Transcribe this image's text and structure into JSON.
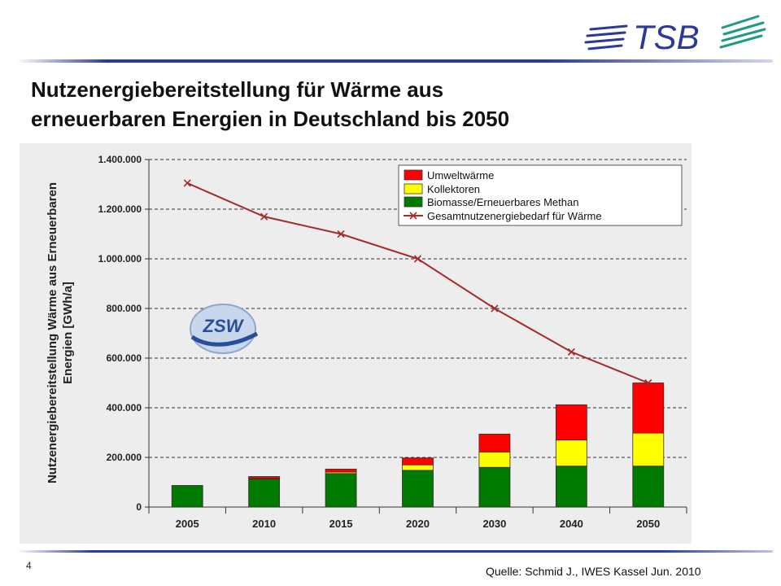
{
  "header": {
    "logo_text": "TSB",
    "title_line1": "Nutzenergiebereitstellung für Wärme aus",
    "title_line2": "erneuerbaren Energien in Deutschland bis 2050"
  },
  "footer": {
    "page_number": "4",
    "source": "Quelle: Schmid J., IWES Kassel Jun. 2010"
  },
  "chart_logo_text": "ZSW",
  "colors": {
    "umweltwaerme": "#ff0000",
    "kollektoren": "#ffff00",
    "biomasse": "#007a00",
    "gesamt_line": "#a52a2a",
    "brand": "#2b3a9a"
  },
  "chart_data": {
    "type": "bar",
    "stacked": true,
    "categories": [
      "2005",
      "2010",
      "2015",
      "2020",
      "2030",
      "2040",
      "2050"
    ],
    "series": [
      {
        "name": "Biomasse/Erneuerbares Methan",
        "kind": "bar",
        "color_key": "biomasse",
        "values": [
          87000,
          113000,
          135000,
          148000,
          160000,
          165000,
          165000
        ]
      },
      {
        "name": "Kollektoren",
        "kind": "bar",
        "color_key": "kollektoren",
        "values": [
          0,
          2000,
          6000,
          22000,
          62000,
          105000,
          133000
        ]
      },
      {
        "name": "Umweltwärme",
        "kind": "bar",
        "color_key": "umweltwaerme",
        "values": [
          0,
          8000,
          12000,
          28000,
          72000,
          142000,
          202000
        ]
      },
      {
        "name": "Gesamtnutzenergiebedarf für Wärme",
        "kind": "line",
        "color_key": "gesamt_line",
        "values": [
          1305000,
          1170000,
          1100000,
          1000000,
          800000,
          625000,
          500000
        ]
      }
    ],
    "legend": {
      "position": "top-right",
      "entries": [
        "Umweltwärme",
        "Kollektoren",
        "Biomasse/Erneuerbares Methan",
        "Gesamtnutzenergiebedarf für Wärme"
      ]
    },
    "ylabel_lines": [
      "Nutzenergiebereitstellung Wärme aus Erneuerbaren",
      "Energien [GWh/a]"
    ],
    "xlabel": "",
    "ylim": [
      0,
      1400000
    ],
    "yticks": [
      0,
      200000,
      400000,
      600000,
      800000,
      1000000,
      1200000,
      1400000
    ],
    "ytick_labels": [
      "0",
      "200.000",
      "400.000",
      "600.000",
      "800.000",
      "1.000.000",
      "1.200.000",
      "1.400.000"
    ],
    "grid": "horizontal dashed"
  }
}
